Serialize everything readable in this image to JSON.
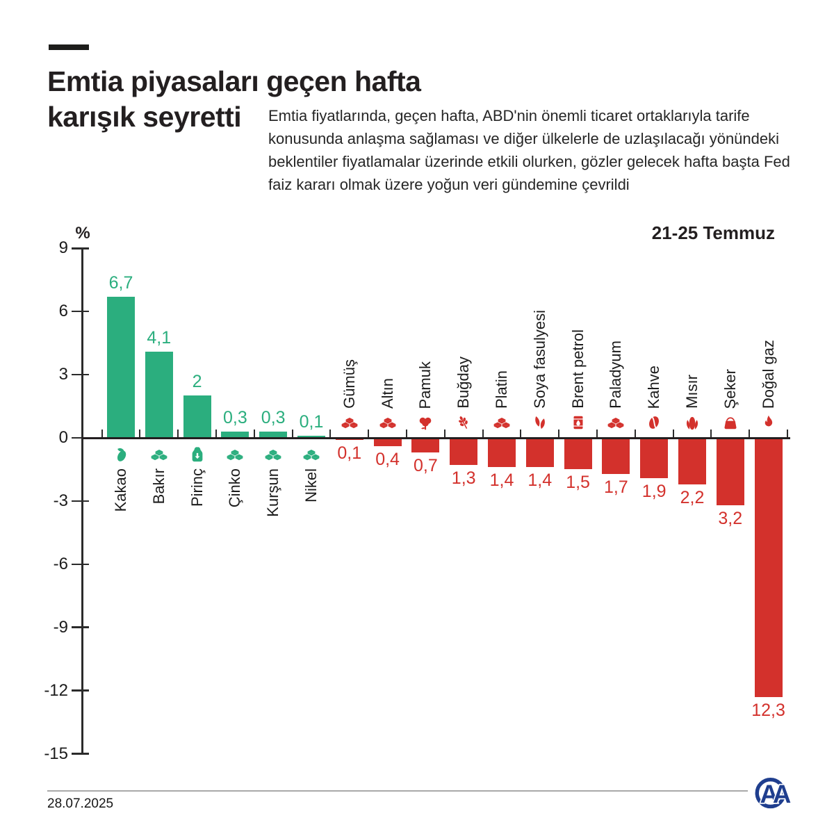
{
  "header": {
    "title_line1": "Emtia piyasaları geçen hafta",
    "title_line2": "karışık seyretti",
    "subtitle": "Emtia fiyatlarında, geçen hafta, ABD'nin önemli ticaret ortaklarıyla tarife konusunda anlaşma sağlaması ve diğer ülkelerle de uzlaşılacağı yönündeki beklentiler fiyatlamalar üzerinde etkili olurken, gözler gelecek hafta başta Fed faiz kararı olmak üzere yoğun veri gündemine çevrildi"
  },
  "chart_data": {
    "type": "bar",
    "period": "21-25 Temmuz",
    "unit": "%",
    "ylabel": "%",
    "ylim": [
      -15,
      9
    ],
    "yticks": [
      9,
      6,
      3,
      0,
      -3,
      -6,
      -9,
      -12,
      -15
    ],
    "grid": false,
    "positive_color": "#2bae7e",
    "negative_color": "#d3312c",
    "categories": [
      "Kakao",
      "Bakır",
      "Pirinç",
      "Çinko",
      "Kurşun",
      "Nikel",
      "Gümüş",
      "Altın",
      "Pamuk",
      "Buğday",
      "Platin",
      "Soya fasulyesi",
      "Brent petrol",
      "Paladyum",
      "Kahve",
      "Mısır",
      "Şeker",
      "Doğal gaz"
    ],
    "values": [
      6.7,
      4.1,
      2,
      0.3,
      0.3,
      0.1,
      -0.1,
      -0.4,
      -0.7,
      -1.3,
      -1.4,
      -1.4,
      -1.5,
      -1.7,
      -1.9,
      -2.2,
      -3.2,
      -12.3
    ],
    "value_labels": [
      "6,7",
      "4,1",
      "2",
      "0,3",
      "0,3",
      "0,1",
      "0,1",
      "0,4",
      "0,7",
      "1,3",
      "1,4",
      "1,4",
      "1,5",
      "1,7",
      "1,9",
      "2,2",
      "3,2",
      "12,3"
    ],
    "icons": [
      "cocoa-pod-icon",
      "ingots-icon",
      "rice-sack-icon",
      "ingots-icon",
      "ingots-icon",
      "ingots-icon",
      "ingots-icon",
      "ingots-icon",
      "cotton-icon",
      "wheat-icon",
      "ingots-icon",
      "soybean-icon",
      "oil-barrel-icon",
      "ingots-icon",
      "coffee-bean-icon",
      "corn-icon",
      "sugar-sack-icon",
      "flame-icon"
    ]
  },
  "footer": {
    "date": "28.07.2025",
    "logo_text": "AA"
  }
}
